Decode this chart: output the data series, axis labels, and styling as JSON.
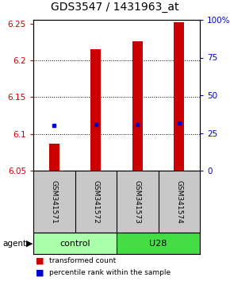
{
  "title": "GDS3547 / 1431963_at",
  "samples": [
    "GSM341571",
    "GSM341572",
    "GSM341573",
    "GSM341574"
  ],
  "bar_bottoms": [
    6.05,
    6.05,
    6.05,
    6.05
  ],
  "bar_tops": [
    6.087,
    6.215,
    6.226,
    6.252
  ],
  "blue_values": [
    6.111,
    6.113,
    6.113,
    6.115
  ],
  "bar_color": "#cc0000",
  "blue_color": "#0000cc",
  "ylim_left": [
    6.05,
    6.255
  ],
  "ylim_right": [
    0,
    100
  ],
  "yticks_left": [
    6.05,
    6.1,
    6.15,
    6.2,
    6.25
  ],
  "yticks_right": [
    0,
    25,
    50,
    75,
    100
  ],
  "ytick_labels_left": [
    "6.05",
    "6.1",
    "6.15",
    "6.2",
    "6.25"
  ],
  "ytick_labels_right": [
    "0",
    "25",
    "50",
    "75",
    "100%"
  ],
  "groups": [
    {
      "label": "control",
      "span": [
        0,
        2
      ],
      "color": "#aaffaa"
    },
    {
      "label": "U28",
      "span": [
        2,
        4
      ],
      "color": "#44dd44"
    }
  ],
  "legend_items": [
    {
      "color": "#cc0000",
      "label": "transformed count"
    },
    {
      "color": "#0000cc",
      "label": "percentile rank within the sample"
    }
  ],
  "background_color": "#ffffff",
  "plot_bg": "#ffffff",
  "bar_width": 0.25,
  "title_fontsize": 10,
  "tick_fontsize": 7.5
}
